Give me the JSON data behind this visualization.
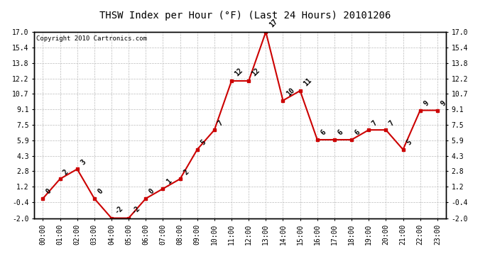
{
  "title": "THSW Index per Hour (°F) (Last 24 Hours) 20101206",
  "copyright": "Copyright 2010 Cartronics.com",
  "hours": [
    "00:00",
    "01:00",
    "02:00",
    "03:00",
    "04:00",
    "05:00",
    "06:00",
    "07:00",
    "08:00",
    "09:00",
    "10:00",
    "11:00",
    "12:00",
    "13:00",
    "14:00",
    "15:00",
    "16:00",
    "17:00",
    "18:00",
    "19:00",
    "20:00",
    "21:00",
    "22:00",
    "23:00"
  ],
  "values": [
    0,
    2,
    3,
    0,
    -2,
    -2,
    0,
    1,
    2,
    5,
    7,
    12,
    12,
    17,
    10,
    11,
    6,
    6,
    6,
    7,
    7,
    5,
    9,
    9
  ],
  "line_color": "#cc0000",
  "marker_color": "#cc0000",
  "bg_color": "#ffffff",
  "grid_color": "#bbbbbb",
  "ylim_min": -2.0,
  "ylim_max": 17.0,
  "yticks": [
    -2.0,
    -0.4,
    1.2,
    2.8,
    4.3,
    5.9,
    7.5,
    9.1,
    10.7,
    12.2,
    13.8,
    15.4,
    17.0
  ],
  "title_fontsize": 10,
  "annotation_fontsize": 7,
  "tick_fontsize": 7,
  "copyright_fontsize": 6.5
}
